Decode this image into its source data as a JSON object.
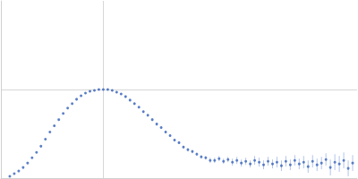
{
  "chart_data": {
    "type": "scatter",
    "x": [
      0.01,
      0.015,
      0.02,
      0.025,
      0.03,
      0.035,
      0.04,
      0.045,
      0.05,
      0.055,
      0.06,
      0.065,
      0.07,
      0.075,
      0.08,
      0.085,
      0.09,
      0.095,
      0.1,
      0.105,
      0.11,
      0.115,
      0.12,
      0.125,
      0.13,
      0.135,
      0.14,
      0.145,
      0.15,
      0.155,
      0.16,
      0.165,
      0.17,
      0.175,
      0.18,
      0.185,
      0.19,
      0.195,
      0.2,
      0.205,
      0.21,
      0.215,
      0.22,
      0.225,
      0.23,
      0.235,
      0.24,
      0.245,
      0.25,
      0.255,
      0.26,
      0.265,
      0.27,
      0.275,
      0.28,
      0.285,
      0.29,
      0.295,
      0.3,
      0.305,
      0.31,
      0.315,
      0.32,
      0.325,
      0.33,
      0.335,
      0.34,
      0.345,
      0.35,
      0.355,
      0.36,
      0.365,
      0.37,
      0.375,
      0.38,
      0.385,
      0.39,
      0.395
    ],
    "series": [
      {
        "color": "#3a64b9",
        "marker": "circle",
        "values": [
          0.02,
          0.05,
          0.08,
          0.12,
          0.17,
          0.23,
          0.29,
          0.36,
          0.44,
          0.52,
          0.59,
          0.66,
          0.73,
          0.79,
          0.84,
          0.89,
          0.93,
          0.96,
          0.98,
          0.99,
          1.0,
          1.0,
          1.0,
          0.99,
          0.97,
          0.95,
          0.92,
          0.88,
          0.84,
          0.8,
          0.75,
          0.71,
          0.66,
          0.61,
          0.57,
          0.52,
          0.48,
          0.43,
          0.4,
          0.35,
          0.32,
          0.3,
          0.27,
          0.24,
          0.23,
          0.2,
          0.2,
          0.22,
          0.19,
          0.21,
          0.18,
          0.2,
          0.17,
          0.19,
          0.16,
          0.2,
          0.18,
          0.15,
          0.19,
          0.16,
          0.18,
          0.14,
          0.19,
          0.15,
          0.2,
          0.16,
          0.18,
          0.13,
          0.19,
          0.15,
          0.17,
          0.21,
          0.12,
          0.18,
          0.16,
          0.2,
          0.11,
          0.17
        ],
        "errors": [
          0.005,
          0.005,
          0.005,
          0.005,
          0.005,
          0.005,
          0.005,
          0.005,
          0.005,
          0.005,
          0.005,
          0.005,
          0.005,
          0.005,
          0.005,
          0.005,
          0.005,
          0.005,
          0.005,
          0.005,
          0.01,
          0.01,
          0.01,
          0.01,
          0.01,
          0.01,
          0.01,
          0.01,
          0.01,
          0.01,
          0.015,
          0.015,
          0.015,
          0.015,
          0.015,
          0.015,
          0.015,
          0.015,
          0.015,
          0.015,
          0.02,
          0.02,
          0.02,
          0.02,
          0.02,
          0.03,
          0.03,
          0.03,
          0.03,
          0.03,
          0.04,
          0.04,
          0.04,
          0.04,
          0.04,
          0.05,
          0.05,
          0.05,
          0.05,
          0.05,
          0.06,
          0.06,
          0.06,
          0.06,
          0.06,
          0.06,
          0.07,
          0.07,
          0.07,
          0.07,
          0.07,
          0.07,
          0.09,
          0.09,
          0.09,
          0.09,
          0.09,
          0.09
        ]
      }
    ],
    "xlim": [
      0,
      0.4
    ],
    "xticks": [
      0.115
    ],
    "ylim": [
      0,
      2
    ],
    "yticks": [
      1
    ],
    "grid": true,
    "tick_labels": false
  }
}
